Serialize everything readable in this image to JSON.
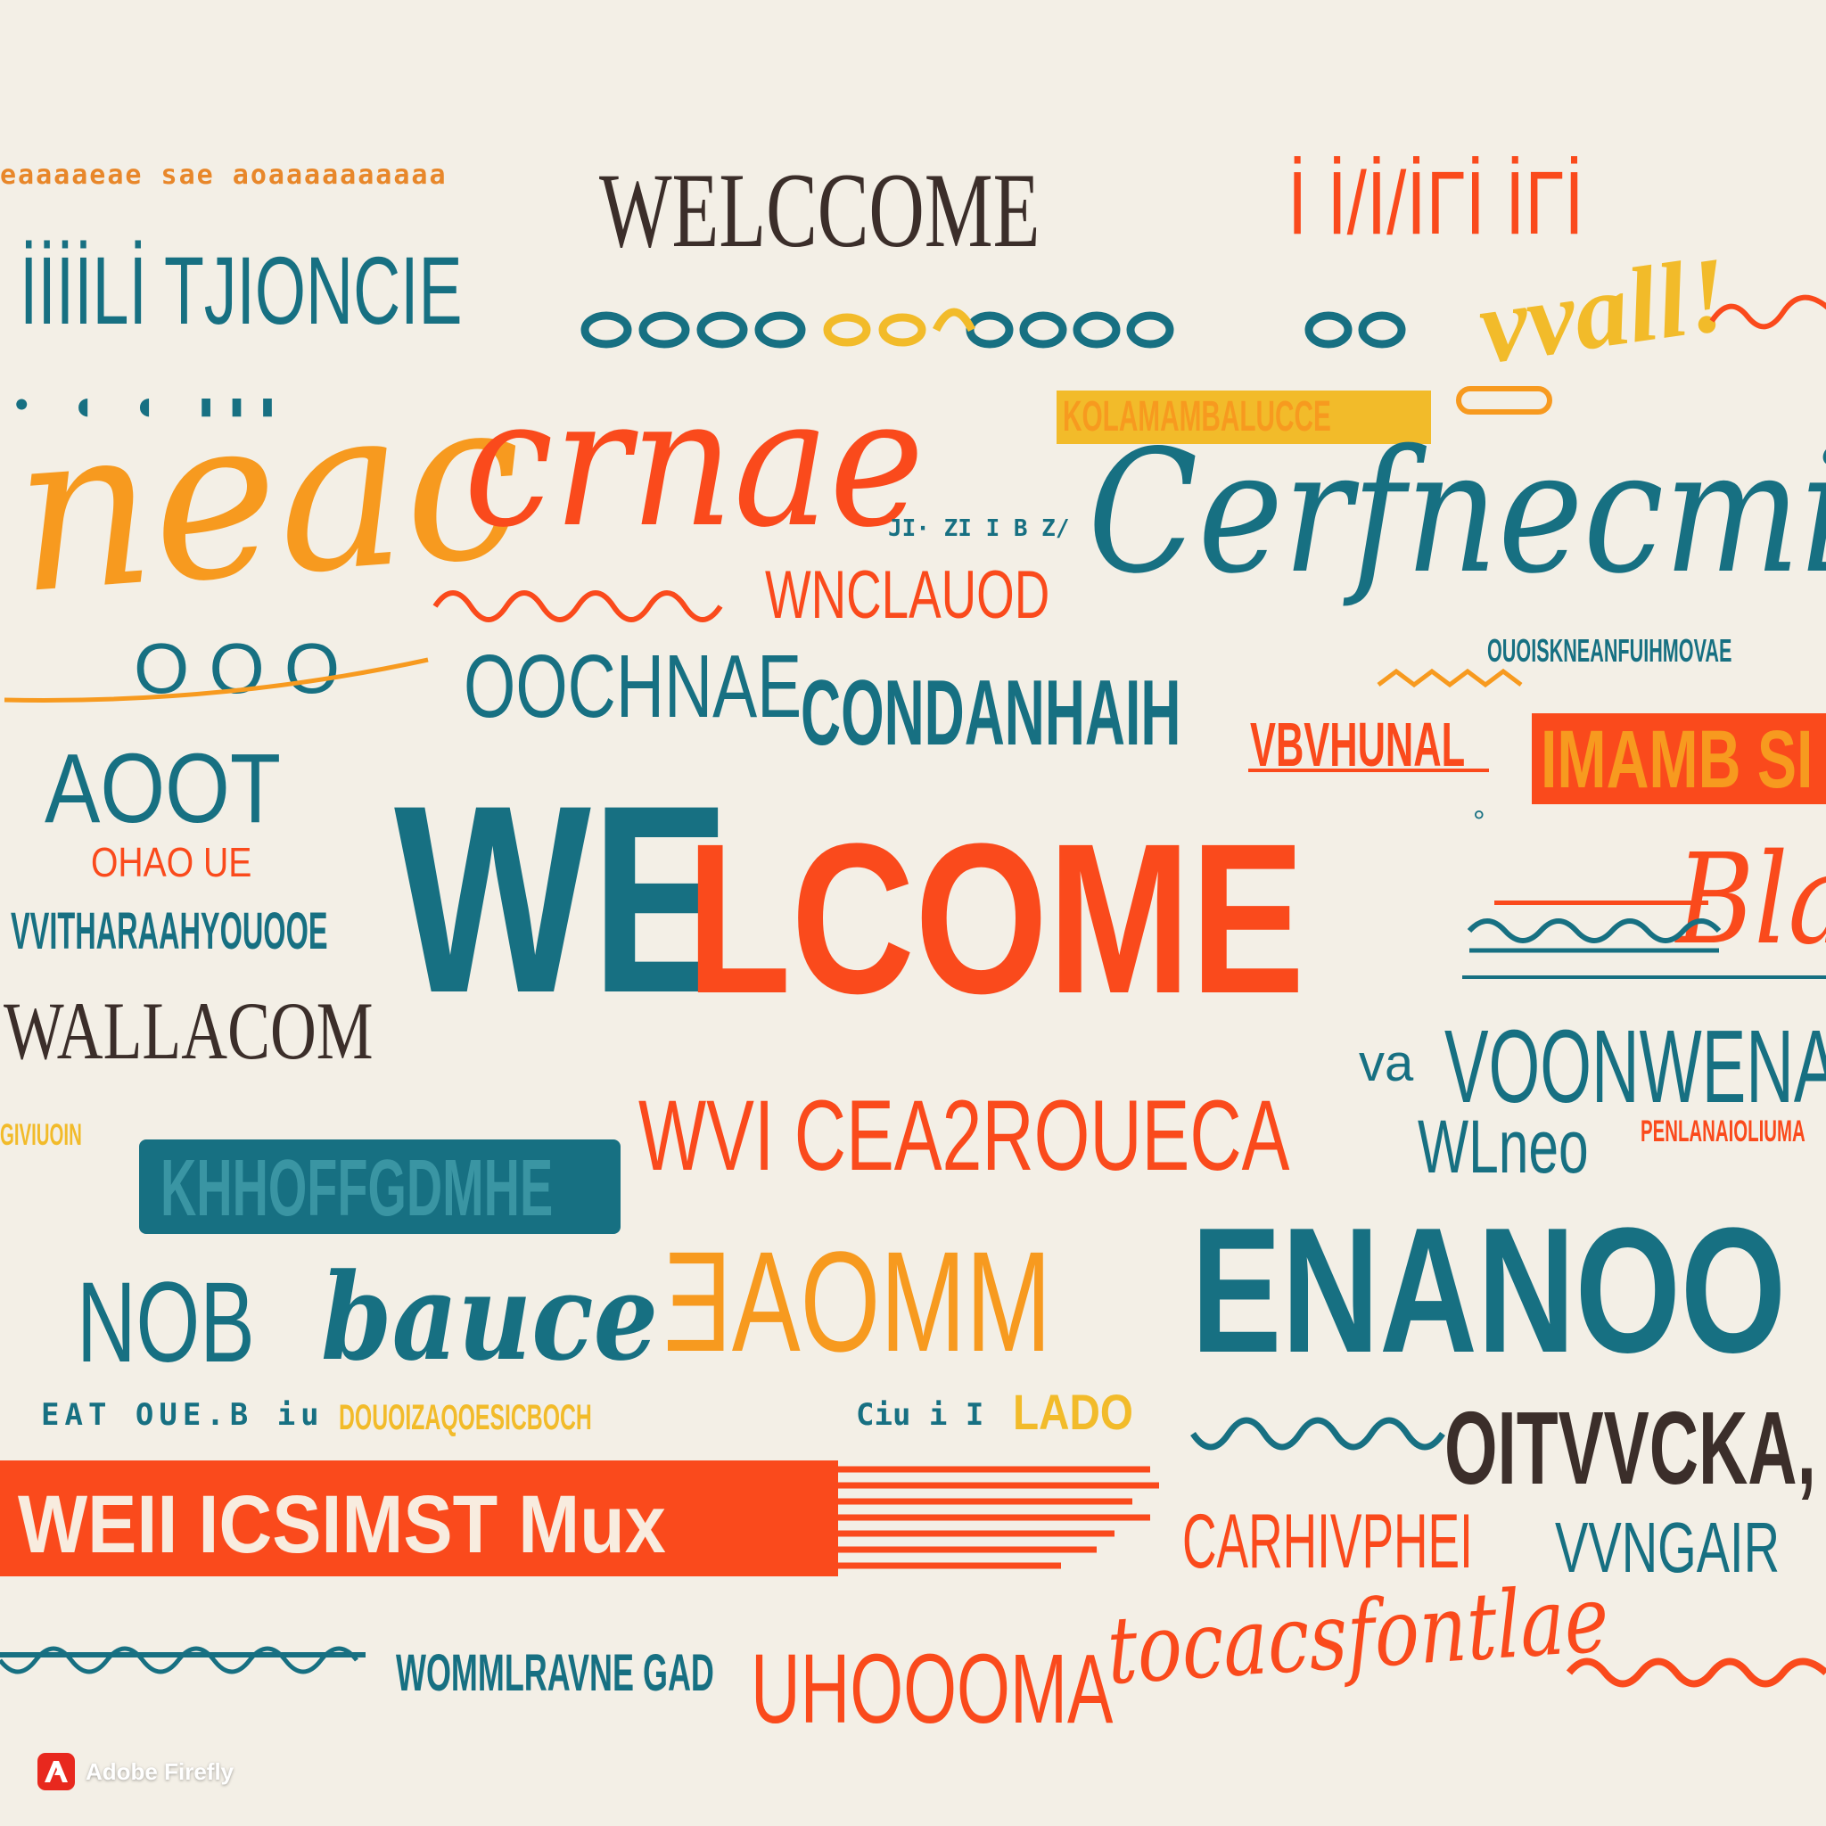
{
  "palette": {
    "teal": "#177082",
    "orange": "#fa4a1c",
    "amber": "#f79a1f",
    "gold": "#f2bb2a",
    "brown": "#3b2e2a",
    "cream": "#f3efe6",
    "badge_red": "#e8281e"
  },
  "words": {
    "hero_we": "WE",
    "hero_lcome": "LCOME",
    "top_center": "WELCCOME",
    "top_right": "İ İ/İ/İΓİ İΓİ",
    "tjioncie": "İİİİLİ TJIONCIE",
    "script_neacc": "neac",
    "script_crnae": "crnae",
    "yellow_band": "KOLAMAMBALUCCE",
    "vvall": "vvall!",
    "cursive_teal": "Cerfnecmi",
    "wnclauod": "WNCLAUOD",
    "ooo": "O O O",
    "oochnae": "OOCHNAE",
    "condanhaih": "CONDANHAIH",
    "vbvhunal": "VBVHUNAL",
    "orange_band": "IMAMB SI",
    "small_top": "OUOISKNEANFUIHMOVAE",
    "aoot": "AOOT",
    "ohaoue": "OHAO UE",
    "vvitharaa": "VVITHARAAHYOUOOE",
    "wallacom": "WALLACOM",
    "vvncea": "WVI CEA2ROUECA",
    "wlneo": "WLneo",
    "voon": "VOONWENAAI",
    "va": "va",
    "penlan": "PENLANAIOLIUMA",
    "khoff": "KHHOFFGDMHE",
    "nob": "NOB",
    "bauce": "bauce",
    "daomm": "ƎAOMM",
    "enanoo": "ENANOO",
    "dot_lines": "EAT OUE.B iu",
    "yellow_small": "DOUOIZAQOESICBOCH",
    "lado": "LADO",
    "oitvvcka": "OITVVCKA,",
    "band_text": "WEII ICSIMST Mux",
    "carhiv": "CARHIVPHEI",
    "vvvnga": "VVNGAIR",
    "wommlrave": "WOMMLRAVNE GAD",
    "uhoooma": "UHOOOMA",
    "cursive_orange": "tocacsfontlae",
    "bla": "Bla",
    "top_left_dots": "eaaaaeae sae aoaaaaaaaaaa"
  },
  "badge": {
    "label": "Adobe Firefly",
    "logo_icon": "adobe-firefly-logo-icon"
  }
}
